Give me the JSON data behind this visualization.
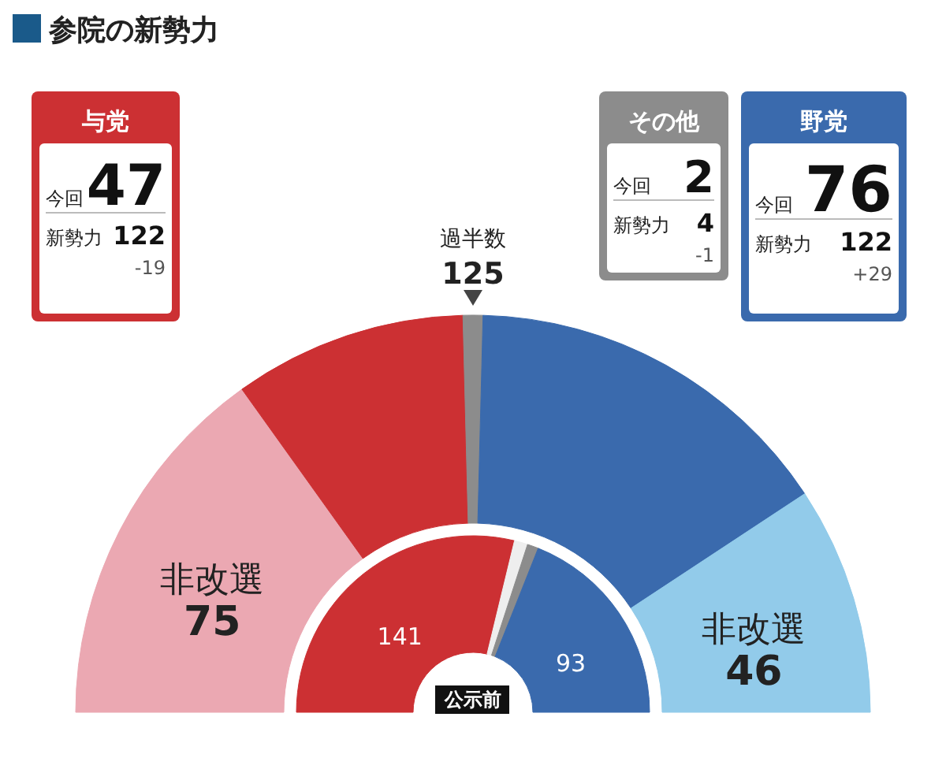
{
  "chart_data": [
    {
      "type": "donut",
      "title": "参院の新勢力",
      "categories": [
        "非改選",
        null,
        null,
        null,
        "非改選"
      ],
      "values": [
        75,
        47,
        4,
        76,
        46
      ],
      "colors": [
        "#eba8b2",
        "#cc3033",
        "#8c8c8c",
        "#3a6aad",
        "#92cbea"
      ],
      "value_labels": [
        "75",
        null,
        null,
        null,
        "46"
      ],
      "annotations": [
        "過半数",
        "125"
      ]
    },
    {
      "type": "donut",
      "categories": [
        null,
        null,
        null,
        null
      ],
      "values": [
        141,
        6,
        5,
        93
      ],
      "colors": [
        "#cc3033",
        "#eeeeee",
        "#8c8c8c",
        "#3a6aad"
      ],
      "value_labels": [
        "141",
        null,
        null,
        "93"
      ],
      "annotations": [
        "公示前"
      ]
    },
    {
      "type": "other",
      "title": "与党",
      "color": "#cc3033",
      "annotations": [
        "今回",
        "47",
        "新勢力",
        "122",
        "-19"
      ]
    },
    {
      "type": "other",
      "title": "その他",
      "color": "#8c8c8c",
      "annotations": [
        "今回",
        "2",
        "新勢力",
        "4",
        "-1"
      ]
    },
    {
      "type": "other",
      "title": "野党",
      "color": "#3a6aad",
      "annotations": [
        "今回",
        "76",
        "新勢力",
        "122",
        "+29"
      ]
    }
  ]
}
